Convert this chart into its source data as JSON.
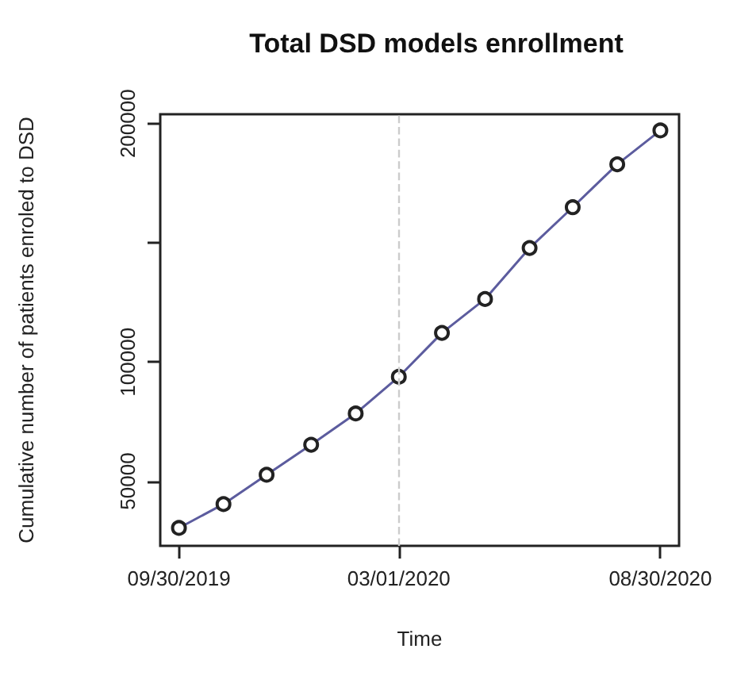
{
  "chart_data": {
    "type": "line",
    "title": "Total DSD models enrollment",
    "xlabel": "Time",
    "ylabel": "Cumulative number of patients enroled to DSD",
    "x": [
      "2019-09-30",
      "2019-10-31",
      "2019-11-30",
      "2019-12-31",
      "2020-01-31",
      "2020-03-01",
      "2020-03-31",
      "2020-04-30",
      "2020-05-31",
      "2020-06-30",
      "2020-07-31",
      "2020-08-30"
    ],
    "series": [
      {
        "color": "#5c5c9e",
        "values": [
          30400,
          40400,
          52700,
          65300,
          78400,
          93800,
          112200,
          126400,
          147800,
          164900,
          182900,
          197100
        ]
      }
    ],
    "xlim": [
      "2019-09-17",
      "2020-09-12"
    ],
    "xticks": [
      {
        "value": "2019-09-30",
        "label": "09/30/2019"
      },
      {
        "value": "2020-03-01",
        "label": "03/01/2020"
      },
      {
        "value": "2020-08-30",
        "label": "08/30/2020"
      }
    ],
    "ylim": [
      22900,
      203900
    ],
    "yticks": [
      50000,
      100000,
      {
        "value": 150000,
        "label": null
      },
      200000
    ],
    "ref_lines": [
      {
        "axis": "x",
        "value": "2020-03-01",
        "color": "#cccccc",
        "line_style": "dashed"
      }
    ],
    "marker": "circle",
    "line_style": "solid",
    "grid": false
  }
}
